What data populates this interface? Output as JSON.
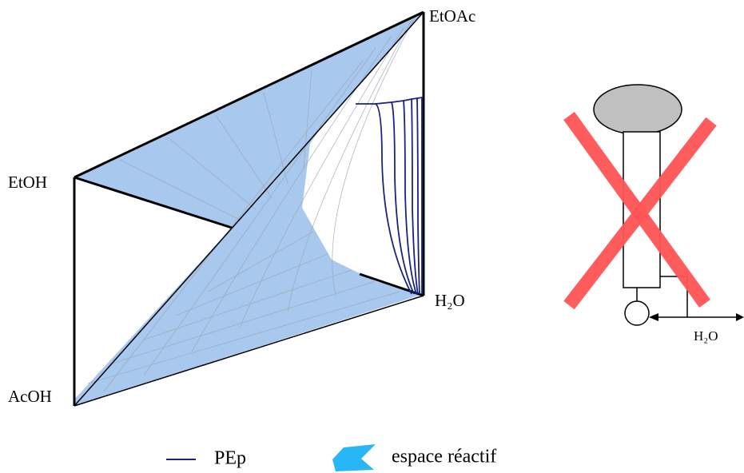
{
  "vertices": {
    "etoac": "EtOAc",
    "etoh": "EtOH",
    "acoh": "AcOH",
    "h2o": "H₂O"
  },
  "column": {
    "outlet_label": "H₂O"
  },
  "legend": [
    {
      "label": "PEp"
    },
    {
      "label": "espace réactif"
    }
  ]
}
